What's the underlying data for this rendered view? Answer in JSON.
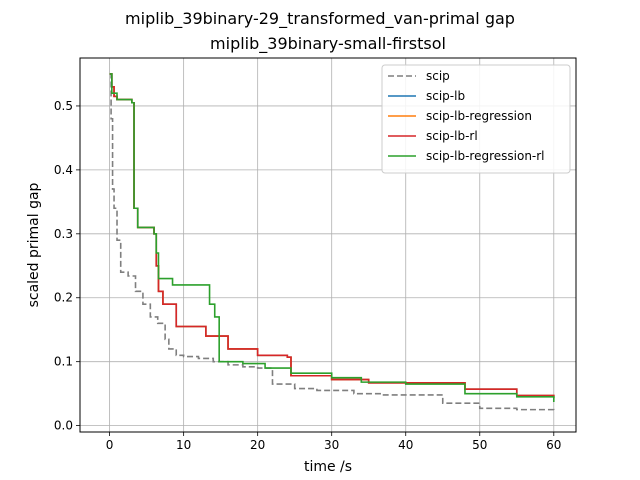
{
  "chart_data": {
    "type": "line",
    "suptitle": "miplib_39binary-29_transformed_van-primal gap",
    "title": "miplib_39binary-small-firstsol",
    "xlabel": "time /s",
    "ylabel": "scaled primal gap",
    "xlim": [
      -4,
      63
    ],
    "ylim": [
      -0.01,
      0.575
    ],
    "xticks": [
      0,
      10,
      20,
      30,
      40,
      50,
      60
    ],
    "yticks": [
      0.0,
      0.1,
      0.2,
      0.3,
      0.4,
      0.5
    ],
    "grid": true,
    "legend_position": "upper right",
    "series": [
      {
        "name": "scip",
        "color": "#7f7f7f",
        "dashed": true,
        "x": [
          0,
          0.2,
          0.4,
          0.6,
          1.0,
          1.5,
          2.5,
          3.5,
          4.5,
          5.5,
          6.5,
          7.5,
          8.0,
          9.0,
          10.0,
          12.0,
          14.0,
          16.0,
          18.0,
          20.0,
          22.0,
          25.0,
          28.0,
          33.0,
          37.0,
          45.0,
          50.0,
          55.0,
          60.0
        ],
        "y": [
          0.55,
          0.48,
          0.37,
          0.34,
          0.29,
          0.24,
          0.234,
          0.21,
          0.19,
          0.17,
          0.16,
          0.135,
          0.12,
          0.11,
          0.108,
          0.105,
          0.1,
          0.095,
          0.092,
          0.09,
          0.065,
          0.058,
          0.055,
          0.05,
          0.048,
          0.035,
          0.027,
          0.025,
          0.022
        ]
      },
      {
        "name": "scip-lb",
        "color": "#1f77b4",
        "dashed": false,
        "x": [
          0,
          0.3,
          0.6,
          1.0,
          3.0,
          3.3,
          3.8,
          6.0,
          6.3,
          6.6,
          7.2,
          9.0,
          13.0,
          16.0,
          20.0,
          24.0,
          24.5,
          30.0,
          35.0,
          48.0,
          55.0,
          60.0
        ],
        "y": [
          0.55,
          0.53,
          0.515,
          0.51,
          0.505,
          0.34,
          0.31,
          0.3,
          0.25,
          0.21,
          0.19,
          0.155,
          0.14,
          0.12,
          0.11,
          0.107,
          0.078,
          0.072,
          0.067,
          0.057,
          0.047,
          0.043
        ]
      },
      {
        "name": "scip-lb-regression",
        "color": "#ff7f0e",
        "dashed": false,
        "x": [
          0,
          0.3,
          0.6,
          1.0,
          3.0,
          3.3,
          3.8,
          6.0,
          6.3,
          6.6,
          7.2,
          9.0,
          13.0,
          16.0,
          20.0,
          24.0,
          24.5,
          30.0,
          35.0,
          48.0,
          55.0,
          60.0
        ],
        "y": [
          0.55,
          0.53,
          0.515,
          0.51,
          0.505,
          0.34,
          0.31,
          0.3,
          0.25,
          0.21,
          0.19,
          0.155,
          0.14,
          0.12,
          0.11,
          0.107,
          0.078,
          0.072,
          0.067,
          0.057,
          0.047,
          0.043
        ]
      },
      {
        "name": "scip-lb-rl",
        "color": "#d62728",
        "dashed": false,
        "x": [
          0,
          0.3,
          0.6,
          1.0,
          3.0,
          3.3,
          3.8,
          6.0,
          6.3,
          6.6,
          7.2,
          9.0,
          13.0,
          16.0,
          20.0,
          24.0,
          24.5,
          30.0,
          35.0,
          48.0,
          55.0,
          60.0
        ],
        "y": [
          0.55,
          0.53,
          0.515,
          0.51,
          0.505,
          0.34,
          0.31,
          0.3,
          0.25,
          0.21,
          0.19,
          0.155,
          0.14,
          0.12,
          0.11,
          0.107,
          0.078,
          0.072,
          0.067,
          0.057,
          0.047,
          0.043
        ]
      },
      {
        "name": "scip-lb-regression-rl",
        "color": "#2ca02c",
        "dashed": false,
        "x": [
          0,
          0.3,
          1.0,
          3.0,
          3.3,
          3.8,
          6.0,
          6.3,
          6.6,
          8.5,
          13.5,
          14.2,
          14.8,
          18.0,
          21.0,
          24.5,
          30.0,
          34.0,
          40.0,
          48.0,
          55.0,
          60.0
        ],
        "y": [
          0.55,
          0.52,
          0.51,
          0.505,
          0.34,
          0.31,
          0.3,
          0.27,
          0.23,
          0.22,
          0.19,
          0.17,
          0.1,
          0.097,
          0.09,
          0.082,
          0.075,
          0.068,
          0.065,
          0.05,
          0.045,
          0.037
        ]
      }
    ]
  }
}
